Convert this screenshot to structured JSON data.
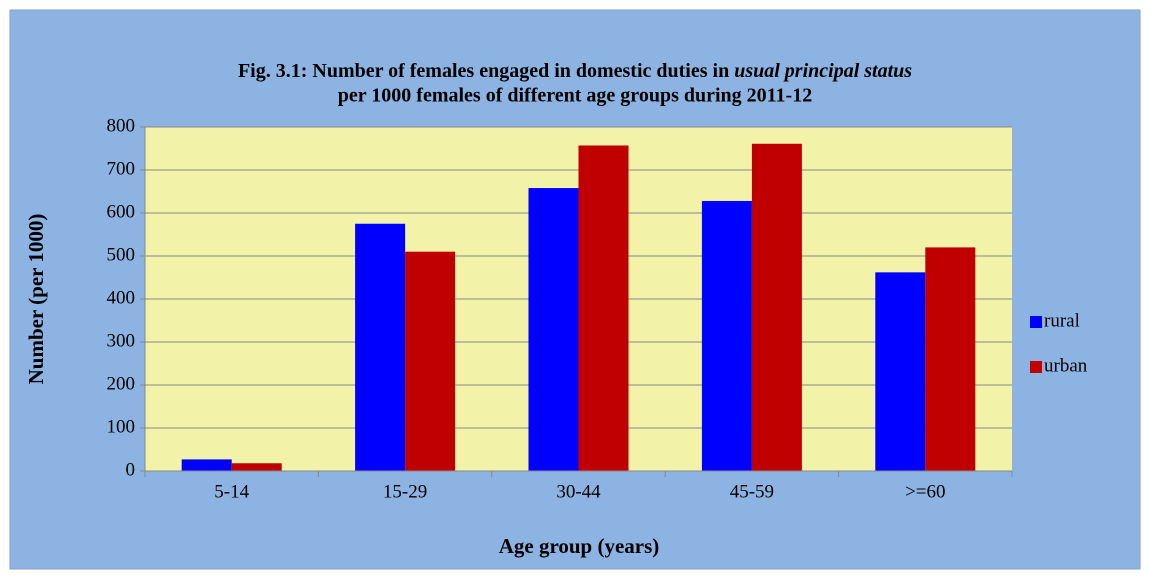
{
  "chart_data": {
    "type": "bar",
    "title_parts": [
      "Fig. 3.1: Number of females engaged in domestic duties in",
      "usual principal status",
      "per 1000 females of different age groups during 2011-12"
    ],
    "x_label": "Age group (years)",
    "y_label": "Number (per 1000)",
    "categories": [
      "5-14",
      "15-29",
      "30-44",
      "45-59",
      ">=60"
    ],
    "series": [
      {
        "name": "rural",
        "color": "#0000ff",
        "values": [
          27,
          575,
          658,
          628,
          462
        ]
      },
      {
        "name": "urban",
        "color": "#c00000",
        "values": [
          18,
          510,
          757,
          761,
          520
        ]
      }
    ],
    "ylim": [
      0,
      800
    ],
    "yticks": [
      0,
      100,
      200,
      300,
      400,
      500,
      600,
      700,
      800
    ],
    "grid": true,
    "legend": "right"
  }
}
